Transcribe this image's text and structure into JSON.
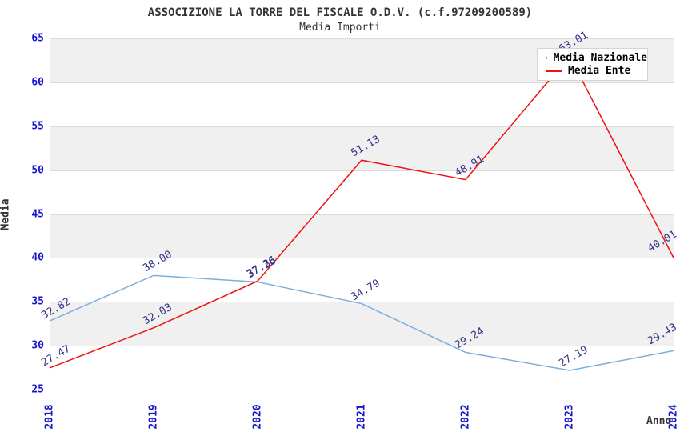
{
  "title": "ASSOCIZIONE LA TORRE DEL FISCALE O.D.V. (c.f.97209200589)",
  "subtitle": "Media Importi",
  "chart_data": {
    "type": "line",
    "x": [
      "2018",
      "2019",
      "2020",
      "2021",
      "2022",
      "2023",
      "2024"
    ],
    "series": [
      {
        "name": "Media Nazionale",
        "color": "#7AAFE0",
        "values": [
          32.82,
          38.0,
          37.26,
          34.79,
          29.24,
          27.19,
          29.43
        ]
      },
      {
        "name": "Media Ente",
        "color": "#EE1111",
        "values": [
          27.47,
          32.03,
          37.36,
          51.13,
          48.91,
          63.01,
          40.01
        ]
      }
    ],
    "xlabel": "Anno",
    "ylabel": "Media",
    "ylim": [
      25,
      65
    ],
    "ytick_step": 5,
    "grid": true,
    "legend_position": "top-right"
  },
  "colors": {
    "tick_label": "#1414cc",
    "data_label": "#333388",
    "band": "#f0f0f0",
    "gridline": "#dcdcdc",
    "axis": "#999999",
    "title_text": "#333333"
  }
}
